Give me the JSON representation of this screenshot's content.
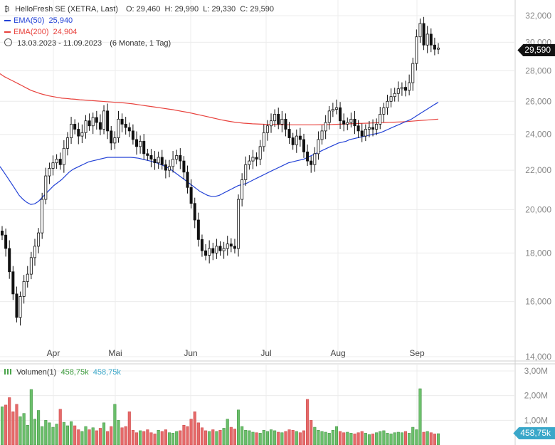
{
  "header": {
    "title": "HelloFresh SE (XETRA, Last)",
    "open": "O: 29,460",
    "high": "H: 29,990",
    "low": "L: 29,330",
    "close": "C: 29,590",
    "ema50_label": "EMA(50)",
    "ema50_value": "25,940",
    "ema200_label": "EMA(200)",
    "ema200_value": "24,904",
    "range": "13.03.2023 - 11.09.2023",
    "period": "(6 Monate, 1 Tag)",
    "volume_label": "Volumen(1)",
    "volume_value": "458,75k",
    "volume_value2": "458,75k"
  },
  "price_tag": "29,590",
  "volume_tag": "458,75k",
  "colors": {
    "ema50": "#2342d6",
    "ema200": "#e8413c",
    "up": "#6bbf6b",
    "down": "#e56a6a",
    "tag": "#111111",
    "voltag": "#3aa7c9"
  },
  "chart_data": {
    "type": "candlestick",
    "y_scale": "log",
    "ylim": [
      14000,
      32000
    ],
    "y_ticks": [
      "32,000",
      "30,000",
      "28,000",
      "26,000",
      "24,000",
      "22,000",
      "20,000",
      "18,000",
      "16,000",
      "14,000"
    ],
    "y_tick_values": [
      32000,
      30000,
      28000,
      26000,
      24000,
      22000,
      20000,
      18000,
      16000,
      14000
    ],
    "x_ticks": [
      "Apr",
      "Mai",
      "Jun",
      "Jul",
      "Aug",
      "Sep"
    ],
    "x_tick_dates": [
      "2023-04-03",
      "2023-05-02",
      "2023-06-01",
      "2023-07-03",
      "2023-08-01",
      "2023-09-01"
    ],
    "closes": [
      18800,
      18200,
      17200,
      16300,
      15400,
      16200,
      16800,
      17100,
      17800,
      18300,
      18900,
      20500,
      21700,
      22100,
      22400,
      22600,
      22300,
      23200,
      23800,
      24600,
      24300,
      23900,
      24100,
      24800,
      24500,
      25000,
      24700,
      24300,
      25400,
      24200,
      23500,
      23800,
      24900,
      24600,
      24400,
      24200,
      23700,
      23300,
      23600,
      22900,
      22800,
      22600,
      22400,
      22700,
      22300,
      22000,
      22200,
      22600,
      22800,
      22500,
      21900,
      21100,
      20300,
      19500,
      18600,
      18100,
      17900,
      18200,
      18000,
      18300,
      18100,
      18200,
      18400,
      18300,
      18200,
      20500,
      21500,
      22300,
      22500,
      22700,
      22600,
      23300,
      24100,
      24500,
      24800,
      25200,
      24600,
      24900,
      24300,
      23800,
      23400,
      23900,
      23700,
      23000,
      22500,
      22300,
      22900,
      23700,
      24200,
      24700,
      25400,
      25500,
      25600,
      24800,
      24600,
      24700,
      24900,
      24500,
      24200,
      23900,
      24300,
      24400,
      24300,
      24600,
      25200,
      25600,
      26000,
      26300,
      26500,
      26800,
      26900,
      26700,
      27200,
      28500,
      30400,
      31400,
      29800,
      30600,
      29800,
      29500,
      29590
    ],
    "ema50": [
      22200,
      21900,
      21600,
      21300,
      21000,
      20700,
      20500,
      20350,
      20250,
      20280,
      20400,
      20600,
      20800,
      21000,
      21200,
      21350,
      21500,
      21700,
      21900,
      22050,
      22150,
      22250,
      22350,
      22450,
      22500,
      22550,
      22600,
      22650,
      22700,
      22700,
      22700,
      22700,
      22700,
      22700,
      22700,
      22680,
      22650,
      22600,
      22550,
      22500,
      22450,
      22380,
      22300,
      22200,
      22100,
      21950,
      21800,
      21650,
      21500,
      21350,
      21200,
      21050,
      20900,
      20800,
      20700,
      20650,
      20650,
      20700,
      20800,
      20900,
      21000,
      21100,
      21200,
      21250,
      21300,
      21400,
      21500,
      21600,
      21700,
      21800,
      21900,
      22000,
      22100,
      22200,
      22300,
      22400,
      22450,
      22500,
      22550,
      22600,
      22700,
      22800,
      22900,
      23000,
      23100,
      23200,
      23300,
      23400,
      23500,
      23550,
      23600,
      23700,
      23750,
      23800,
      23850,
      23900,
      23950,
      24000,
      24050,
      24100,
      24200,
      24300,
      24400,
      24500,
      24600,
      24700,
      24800,
      24900,
      25050,
      25200,
      25350,
      25500,
      25650,
      25800,
      25940
    ],
    "ema200": [
      27800,
      27600,
      27450,
      27300,
      27150,
      27000,
      26850,
      26700,
      26600,
      26500,
      26420,
      26350,
      26300,
      26250,
      26200,
      26180,
      26150,
      26130,
      26100,
      26080,
      26060,
      26040,
      26020,
      26000,
      25980,
      25960,
      25940,
      25920,
      25900,
      25870,
      25840,
      25800,
      25760,
      25720,
      25680,
      25640,
      25600,
      25560,
      25520,
      25480,
      25430,
      25380,
      25330,
      25280,
      25220,
      25160,
      25100,
      25040,
      24980,
      24920,
      24860,
      24810,
      24760,
      24720,
      24690,
      24660,
      24640,
      24620,
      24610,
      24600,
      24590,
      24585,
      24580,
      24575,
      24570,
      24565,
      24560,
      24560,
      24560,
      24560,
      24560,
      24560,
      24565,
      24570,
      24575,
      24580,
      24590,
      24600,
      24610,
      24620,
      24630,
      24640,
      24650,
      24660,
      24670,
      24680,
      24690,
      24700,
      24710,
      24720,
      24730,
      24740,
      24760,
      24780,
      24800,
      24820,
      24840,
      24860,
      24880,
      24904
    ],
    "volume_ticks": [
      "3,00M",
      "2,00M",
      "1,00M"
    ],
    "volume_tick_values": [
      3000000,
      2000000,
      1000000
    ],
    "volumes": [
      1.55,
      1.62,
      1.92,
      1.35,
      1.65,
      1.15,
      1.28,
      0.8,
      2.25,
      1.05,
      1.4,
      0.75,
      1.0,
      0.9,
      0.72,
      0.85,
      1.45,
      0.92,
      0.78,
      0.95,
      0.78,
      0.62,
      0.55,
      0.75,
      0.62,
      0.7,
      0.58,
      0.68,
      0.9,
      0.55,
      0.75,
      1.65,
      1.0,
      0.7,
      0.75,
      1.35,
      0.6,
      0.5,
      0.58,
      0.55,
      0.62,
      0.5,
      0.45,
      0.6,
      0.55,
      0.62,
      0.5,
      0.48,
      0.55,
      0.58,
      0.8,
      0.75,
      1.05,
      1.35,
      0.9,
      0.7,
      0.58,
      0.55,
      0.62,
      0.55,
      0.6,
      0.68,
      1.05,
      0.72,
      0.65,
      1.42,
      0.75,
      0.6,
      0.58,
      0.52,
      0.5,
      0.48,
      0.6,
      0.55,
      0.62,
      0.58,
      0.52,
      0.5,
      0.55,
      0.62,
      0.6,
      0.55,
      0.5,
      0.58,
      1.85,
      1.0,
      0.72,
      0.6,
      0.55,
      0.52,
      0.48,
      0.6,
      0.75,
      0.55,
      0.5,
      0.52,
      0.48,
      0.45,
      0.5,
      0.55,
      0.48,
      0.42,
      0.45,
      0.5,
      0.55,
      0.58,
      0.48,
      0.45,
      0.5,
      0.52,
      0.5,
      0.55,
      0.48,
      0.72,
      0.62,
      2.28,
      0.52,
      0.55,
      0.5,
      0.45,
      0.46
    ]
  }
}
